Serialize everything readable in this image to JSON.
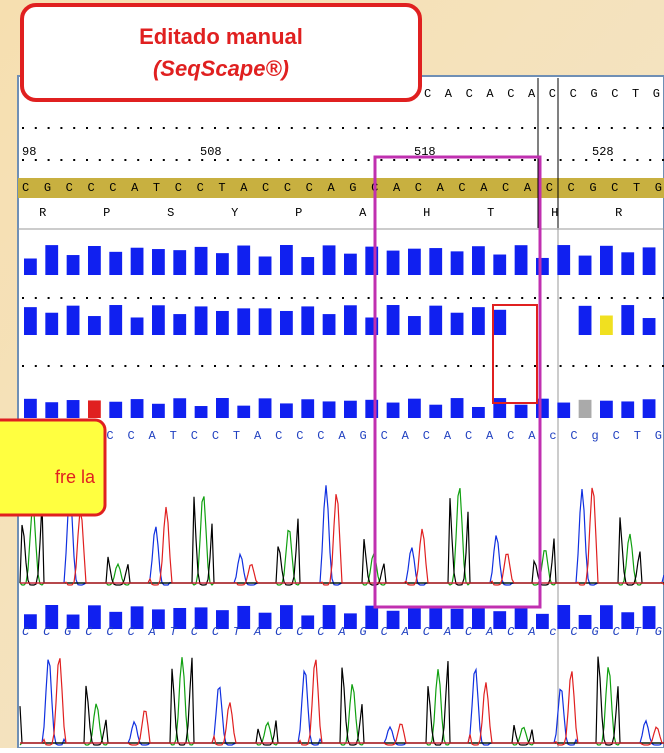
{
  "callout": {
    "line1": "Editado manual",
    "line2": "(SeqScape®)"
  },
  "side_note": "fre la",
  "viewer": {
    "top_sequence": "CACACACCGCTG",
    "ruler": [
      "98",
      "508",
      "518",
      "528"
    ],
    "reference": "CGCCCATCCTACCCAGCACACACACCGCTG",
    "amino_acids": [
      "R",
      "P",
      "S",
      "Y",
      "P",
      "A",
      "H",
      "T",
      "H",
      "R"
    ],
    "read1": "CCGCCCATCCTACCCAGCACACACAcCgCTG",
    "read2": "CCGCCCATCCTACCCAGCACACACAcCGCTG"
  }
}
